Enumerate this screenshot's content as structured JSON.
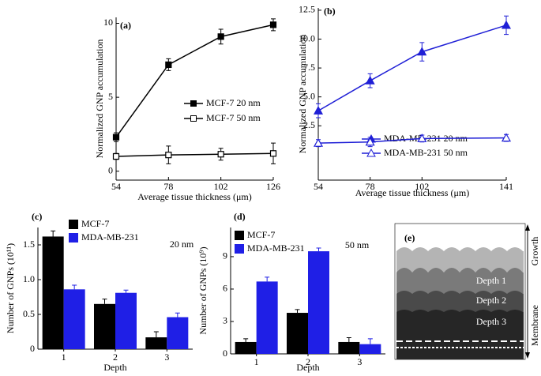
{
  "chart_data": [
    {
      "type": "line",
      "title": "(a)",
      "xlabel": "Average tissue thickness (μm)",
      "ylabel": "Normalized GNP accumulation",
      "x": [
        54,
        78,
        102,
        126
      ],
      "xlim": [
        54,
        126
      ],
      "xticks": [
        54,
        78,
        102,
        126
      ],
      "ylim": [
        -0.6,
        10.4
      ],
      "yticks": [
        0,
        5,
        10
      ],
      "series": [
        {
          "name": "MCF-7 20 nm",
          "color": "#000000",
          "marker": "square",
          "filled": true,
          "values": [
            2.3,
            7.2,
            9.1,
            9.9
          ],
          "errors": [
            0.3,
            0.4,
            0.5,
            0.4
          ]
        },
        {
          "name": "MCF-7 50 nm",
          "color": "#000000",
          "marker": "square",
          "filled": false,
          "values": [
            1.0,
            1.1,
            1.15,
            1.2
          ],
          "errors": [
            0.2,
            0.6,
            0.4,
            0.7
          ]
        }
      ]
    },
    {
      "type": "line",
      "title": "(b)",
      "xlabel": "Average tissue thickness (μm)",
      "ylabel": "Normalized GNP accumulation",
      "x": [
        54,
        78,
        102,
        141
      ],
      "xlim": [
        54,
        141
      ],
      "xticks": [
        54,
        78,
        102,
        141
      ],
      "ylim": [
        -2.2,
        12.7
      ],
      "yticks": [
        {
          "value": 2.5,
          "label": "2.5"
        },
        {
          "value": 5,
          "label": "5.0"
        },
        {
          "value": 7.5,
          "label": "7.5"
        },
        {
          "value": 10,
          "label": "10.0"
        },
        {
          "value": 12.5,
          "label": "12.5"
        }
      ],
      "series": [
        {
          "name": "MDA-MB-231 20 nm",
          "color": "#1f1fd6",
          "marker": "triangle",
          "filled": true,
          "values": [
            3.8,
            6.4,
            8.9,
            11.2
          ],
          "errors": [
            0.6,
            0.6,
            0.8,
            0.8
          ]
        },
        {
          "name": "MDA-MB-231 50 nm",
          "color": "#1f1fd6",
          "marker": "triangle",
          "filled": false,
          "values": [
            1.0,
            1.1,
            1.4,
            1.45
          ],
          "errors": [
            0.3,
            0.4,
            0.3,
            0.3
          ]
        }
      ]
    },
    {
      "type": "bar",
      "title": "(c)",
      "xlabel": "Depth",
      "ylabel": "Number of GNPs (10¹¹)",
      "annotation": "20 nm",
      "categories": [
        "1",
        "2",
        "3"
      ],
      "ylim": [
        0,
        1.75
      ],
      "yticks": [
        0,
        0.5,
        {
          "value": 1,
          "label": "1.0"
        },
        1.5
      ],
      "series": [
        {
          "name": "MCF-7",
          "color": "#000000",
          "values": [
            1.62,
            0.65,
            0.17
          ],
          "errors": [
            0.08,
            0.07,
            0.08
          ]
        },
        {
          "name": "MDA-MB-231",
          "color": "#1f1fe6",
          "values": [
            0.86,
            0.81,
            0.46
          ],
          "errors": [
            0.06,
            0.04,
            0.06
          ]
        }
      ]
    },
    {
      "type": "bar",
      "title": "(d)",
      "xlabel": "Depth",
      "ylabel": "Number of GNPs (10⁹)",
      "annotation": "50 nm",
      "categories": [
        "1",
        "2",
        "3"
      ],
      "ylim": [
        0,
        11.7
      ],
      "yticks": [
        0,
        3,
        6,
        9
      ],
      "series": [
        {
          "name": "MCF-7",
          "color": "#000000",
          "values": [
            1.1,
            3.8,
            1.1
          ],
          "errors": [
            0.3,
            0.3,
            0.4
          ]
        },
        {
          "name": "MDA-MB-231",
          "color": "#1f1fe6",
          "values": [
            6.7,
            9.5,
            0.9
          ],
          "errors": [
            0.4,
            0.3,
            0.5
          ]
        }
      ]
    }
  ],
  "diagram": {
    "title": "(e)",
    "layers": [
      "Depth 1",
      "Depth 2",
      "Depth 3"
    ],
    "growth": "Growth",
    "membrane": "Membrane"
  }
}
